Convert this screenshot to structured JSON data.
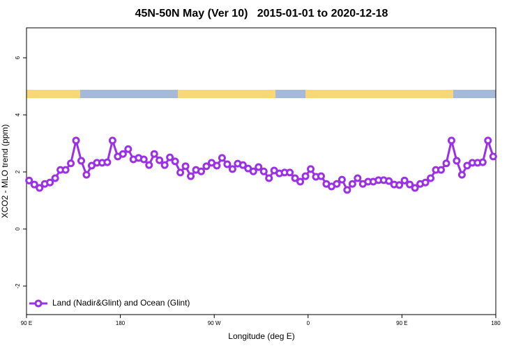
{
  "chart_data": {
    "type": "line",
    "title": "45N-50N May (Ver 10)   2015-01-01 to 2020-12-18",
    "x_label": "Longitude (deg E)",
    "y_label": "XCO2 - MLO trend (ppm)",
    "xlim": [
      90,
      540
    ],
    "ylim": [
      -3,
      7.05
    ],
    "xticks": [
      {
        "value": 90,
        "label": "90 E"
      },
      180,
      {
        "value": 270,
        "label": "90 W"
      },
      {
        "value": 360,
        "label": "0"
      },
      {
        "value": 450,
        "label": "90 E"
      },
      {
        "value": 540,
        "label": "180"
      }
    ],
    "yticks": [
      -2,
      0,
      2,
      4,
      6
    ],
    "x": [
      92.5,
      97.5,
      102.5,
      107.5,
      112.5,
      117.5,
      122.5,
      127.5,
      132.5,
      137.5,
      142.5,
      147.5,
      152.5,
      157.5,
      162.5,
      167.5,
      172.5,
      177.5,
      182.5,
      187.5,
      192.5,
      197.5,
      202.5,
      207.5,
      212.5,
      217.5,
      222.5,
      227.5,
      232.5,
      237.5,
      242.5,
      247.5,
      252.5,
      257.5,
      262.5,
      267.5,
      272.5,
      277.5,
      282.5,
      287.5,
      292.5,
      297.5,
      302.5,
      307.5,
      312.5,
      317.5,
      322.5,
      327.5,
      332.5,
      337.5,
      342.5,
      347.5,
      352.5,
      357.5,
      362.5,
      367.5,
      372.5,
      377.5,
      382.5,
      387.5,
      392.5,
      397.5,
      402.5,
      407.5,
      412.5,
      417.5,
      422.5,
      427.5,
      432.5,
      437.5,
      442.5,
      447.5,
      452.5,
      457.5,
      462.5,
      467.5,
      472.5,
      477.5,
      482.5,
      487.5,
      492.5,
      497.5,
      502.5,
      507.5,
      512.5,
      517.5,
      522.5,
      527.5,
      532.5,
      537.5
    ],
    "series": [
      {
        "name": "Land (Nadir&Glint) and Ocean (Glint)",
        "color": "#9b30e6",
        "values": [
          1.7,
          1.56,
          1.44,
          1.58,
          1.63,
          1.78,
          2.07,
          2.07,
          2.3,
          3.1,
          2.39,
          1.9,
          2.22,
          2.32,
          2.32,
          2.34,
          3.1,
          2.54,
          2.63,
          2.8,
          2.44,
          2.49,
          2.44,
          2.24,
          2.63,
          2.41,
          2.24,
          2.51,
          2.37,
          1.98,
          2.2,
          1.85,
          2.07,
          2.02,
          2.2,
          2.32,
          2.22,
          2.49,
          2.27,
          2.1,
          2.29,
          2.24,
          2.12,
          2.02,
          2.17,
          2.02,
          1.78,
          2.05,
          1.95,
          1.98,
          1.98,
          1.78,
          1.66,
          1.85,
          2.1,
          1.83,
          1.85,
          1.58,
          1.49,
          1.58,
          1.73,
          1.37,
          1.58,
          1.78,
          1.58,
          1.66,
          1.66,
          1.71,
          1.71,
          1.68,
          1.56,
          1.54,
          1.7,
          1.56,
          1.44,
          1.58,
          1.63,
          1.78,
          2.07,
          2.07,
          2.3,
          3.1,
          2.39,
          1.9,
          2.22,
          2.32,
          2.32,
          2.34,
          3.1,
          2.54
        ]
      }
    ]
  }
}
